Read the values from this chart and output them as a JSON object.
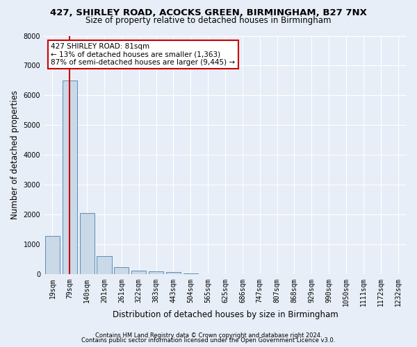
{
  "title1": "427, SHIRLEY ROAD, ACOCKS GREEN, BIRMINGHAM, B27 7NX",
  "title2": "Size of property relative to detached houses in Birmingham",
  "xlabel": "Distribution of detached houses by size in Birmingham",
  "ylabel": "Number of detached properties",
  "footer1": "Contains HM Land Registry data © Crown copyright and database right 2024.",
  "footer2": "Contains public sector information licensed under the Open Government Licence v3.0.",
  "categories": [
    "19sqm",
    "79sqm",
    "140sqm",
    "201sqm",
    "261sqm",
    "322sqm",
    "383sqm",
    "443sqm",
    "504sqm",
    "565sqm",
    "625sqm",
    "686sqm",
    "747sqm",
    "807sqm",
    "868sqm",
    "929sqm",
    "990sqm",
    "1050sqm",
    "1111sqm",
    "1172sqm",
    "1232sqm"
  ],
  "values": [
    1300,
    6500,
    2050,
    620,
    250,
    130,
    100,
    80,
    30,
    10,
    5,
    3,
    2,
    1,
    1,
    0,
    0,
    0,
    0,
    0,
    0
  ],
  "bar_color": "#c9d9e8",
  "bar_edge_color": "#5a8db5",
  "vline_x": 1,
  "vline_color": "#cc0000",
  "annotation_text": "427 SHIRLEY ROAD: 81sqm\n← 13% of detached houses are smaller (1,363)\n87% of semi-detached houses are larger (9,445) →",
  "annotation_box_color": "#ffffff",
  "annotation_box_edge": "#cc0000",
  "ylim": [
    0,
    8000
  ],
  "yticks": [
    0,
    1000,
    2000,
    3000,
    4000,
    5000,
    6000,
    7000,
    8000
  ],
  "background_color": "#e8eef7",
  "grid_color": "#ffffff",
  "title1_fontsize": 9.5,
  "title2_fontsize": 8.5,
  "axis_label_fontsize": 8.5,
  "tick_fontsize": 7,
  "footer_fontsize": 6,
  "annotation_fontsize": 7.5
}
